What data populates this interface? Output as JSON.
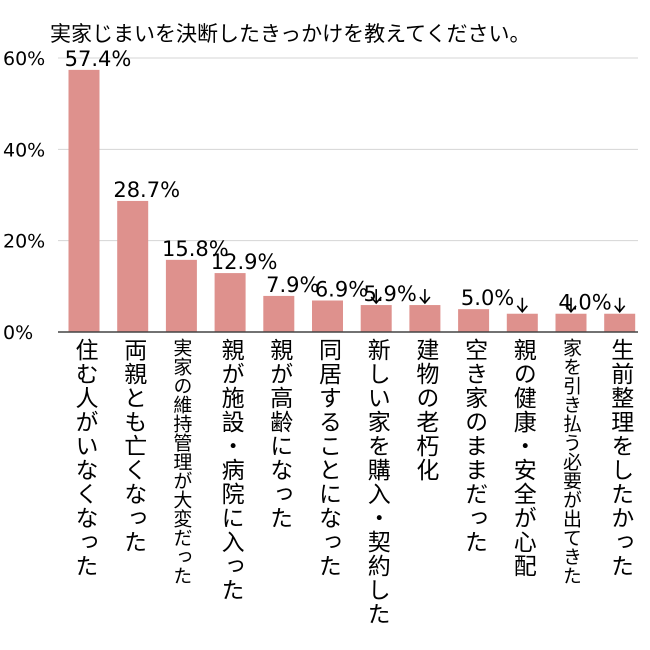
{
  "chart_data": {
    "type": "bar",
    "title": "実家じまいを決断したきっかけを教えてください。",
    "xlabel": "",
    "ylabel": "",
    "ylim": [
      0,
      60
    ],
    "yticks": [
      "0%",
      "20%",
      "40%",
      "60%"
    ],
    "grid": true,
    "legend": "none",
    "bar_color": "#de918d",
    "categories": [
      "住む人がいなくなった",
      "両親とも亡くなった",
      "実家の維持管理が大変だった",
      "親が施設・病院に入った",
      "親が高齢になった",
      "同居することになった",
      "新しい家を購入・契約した",
      "建物の老朽化",
      "空き家のままだった",
      "親の健康・安全が心配",
      "家を引き払う必要が出てきた",
      "生前整理をしたかった"
    ],
    "values": [
      57.4,
      28.7,
      15.8,
      12.9,
      7.9,
      6.9,
      5.9,
      5.9,
      5.0,
      4.0,
      4.0,
      4.0
    ],
    "data_labels": [
      "57.4%",
      "28.7%",
      "15.8%",
      "12.9%",
      "7.9%",
      "6.9%",
      "5.9%",
      "",
      "5.0%",
      "",
      "4.0%",
      ""
    ],
    "label_arrows": [
      false,
      false,
      false,
      false,
      false,
      false,
      true,
      true,
      false,
      true,
      true,
      true
    ]
  }
}
